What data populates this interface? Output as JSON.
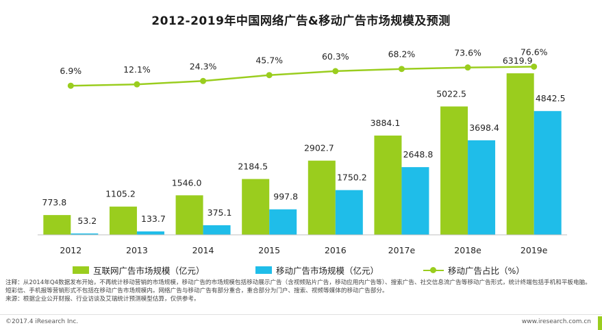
{
  "title": "2012-2019年中国网络广告&移动广告市场规模及预测",
  "colors": {
    "internet": "#9acd1e",
    "mobile": "#1fbde9",
    "ratio": "#9acd1e",
    "axis": "#bfbfbf"
  },
  "chart_data": {
    "type": "bar",
    "title": "2012-2019年中国网络广告&移动广告市场规模及预测",
    "categories": [
      "2012",
      "2013",
      "2014",
      "2015",
      "2016",
      "2017e",
      "2018e",
      "2019e"
    ],
    "series": [
      {
        "name": "互联网广告市场规模（亿元）",
        "type": "bar",
        "values": [
          773.8,
          1105.2,
          1546.0,
          2184.5,
          2902.7,
          3884.1,
          5022.5,
          6319.9
        ],
        "labels": [
          "773.8",
          "1105.2",
          "1546.0",
          "2184.5",
          "2902.7",
          "3884.1",
          "5022.5",
          "6319.9"
        ]
      },
      {
        "name": "移动广告市场规模（亿元）",
        "type": "bar",
        "values": [
          53.2,
          133.7,
          375.1,
          997.8,
          1750.2,
          2648.8,
          3698.4,
          4842.5
        ],
        "labels": [
          "53.2",
          "133.7",
          "375.1",
          "997.8",
          "1750.2",
          "2648.8",
          "3698.4",
          "4842.5"
        ]
      },
      {
        "name": "移动广告占比（%）",
        "type": "line",
        "values": [
          6.9,
          12.1,
          24.3,
          45.7,
          60.3,
          68.2,
          73.6,
          76.6
        ],
        "labels": [
          "6.9%",
          "12.1%",
          "24.3%",
          "45.7%",
          "60.3%",
          "68.2%",
          "73.6%",
          "76.6%"
        ]
      }
    ],
    "ylim": [
      0,
      7500
    ],
    "y2lim": [
      0,
      100
    ],
    "legend_position": "bottom"
  },
  "notes": {
    "note": "注释：从2014年Q4数据发布开始，不再统计移动营销的市场规模，移动广告的市场规模包括移动展示广告（含视频贴片广告，移动应用内广告等）、搜索广告、社交信息流广告等移动广告形式，统计终端包括手机和平板电脑。短彩信、手机报等营销形式不包括在移动广告市场规模内。网络广告与移动广告有部分重合，重合部分为门户、搜索、视频等媒体的移动广告部分。",
    "source": "来源：根据企业公开财报、行业访谈及艾瑞统计预测模型估算，仅供参考。"
  },
  "footer": {
    "copyright": "©2017.4 iResearch Inc.",
    "website": "www.iresearch.com.cn"
  }
}
